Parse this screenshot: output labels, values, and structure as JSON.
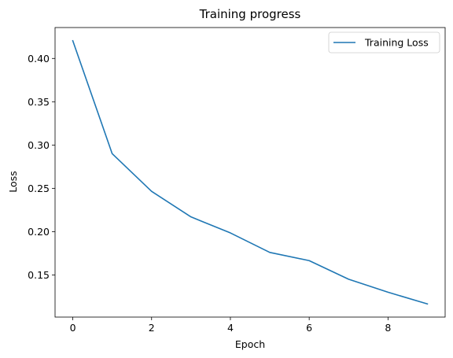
{
  "chart_data": {
    "type": "line",
    "title": "Training progress",
    "xlabel": "Epoch",
    "ylabel": "Loss",
    "x": [
      0,
      1,
      2,
      3,
      4,
      5,
      6,
      7,
      8,
      9
    ],
    "series": [
      {
        "name": "Training Loss",
        "color": "#1f77b4",
        "values": [
          0.4205,
          0.29,
          0.2465,
          0.217,
          0.1985,
          0.176,
          0.1665,
          0.145,
          0.13,
          0.1165
        ]
      }
    ],
    "xlim": [
      -0.45,
      9.45
    ],
    "ylim": [
      0.1013,
      0.4357
    ],
    "xticks": [
      0,
      2,
      4,
      6,
      8
    ],
    "xtick_labels": [
      "0",
      "2",
      "4",
      "6",
      "8"
    ],
    "yticks": [
      0.15,
      0.2,
      0.25,
      0.3,
      0.35,
      0.4
    ],
    "ytick_labels": [
      "0.15",
      "0.20",
      "0.25",
      "0.30",
      "0.35",
      "0.40"
    ],
    "grid": false,
    "legend_position": "top-right"
  }
}
